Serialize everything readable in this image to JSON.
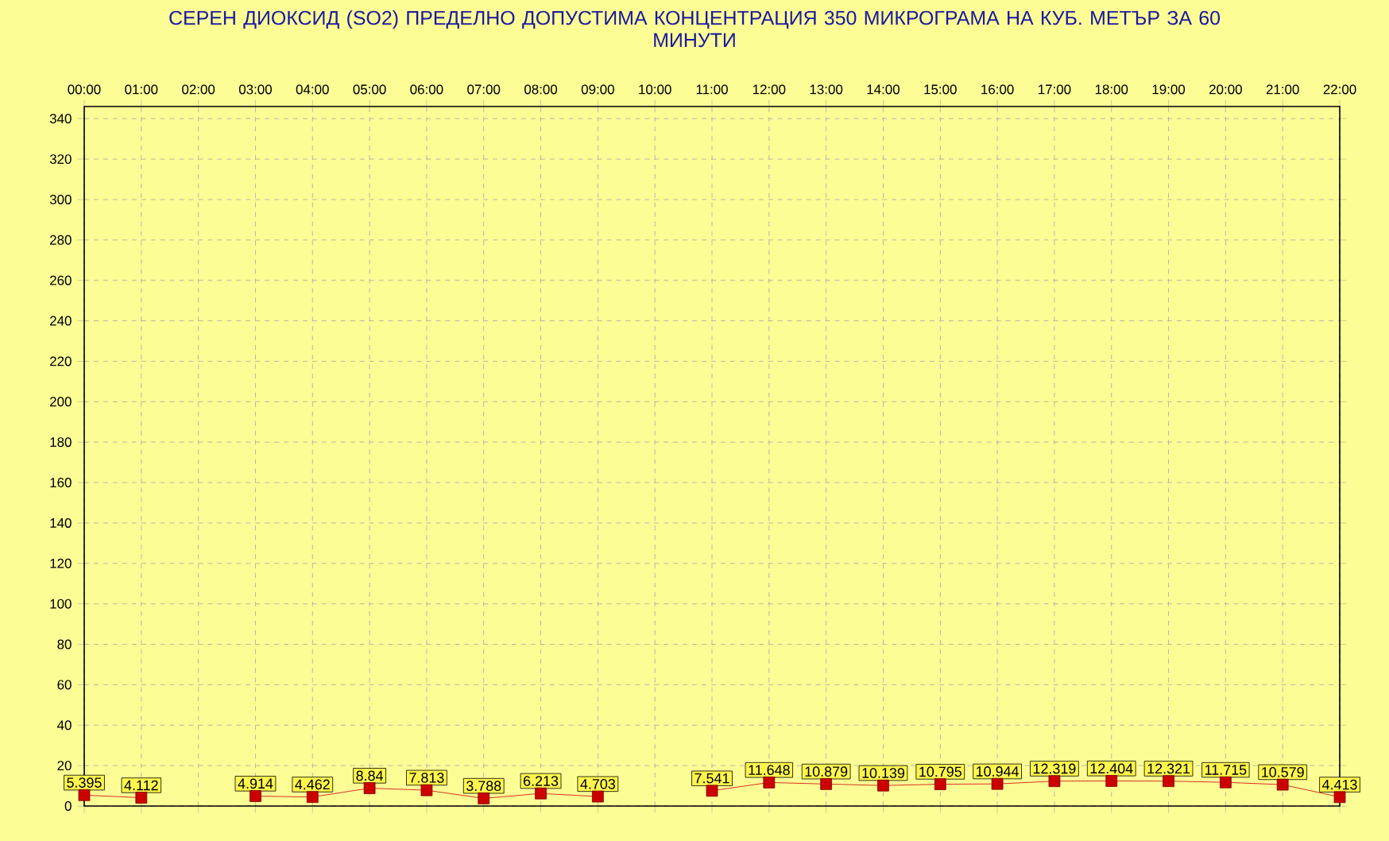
{
  "chart_data": {
    "type": "line",
    "title": "СЕРЕН ДИОКСИД (SO2) ПРЕДЕЛНО ДОПУСТИМА КОНЦЕНТРАЦИЯ 350 МИКРОГРАМА НА КУБ. МЕТЪР ЗА 60 МИНУТИ",
    "categories": [
      "00:00",
      "01:00",
      "02:00",
      "03:00",
      "04:00",
      "05:00",
      "06:00",
      "07:00",
      "08:00",
      "09:00",
      "10:00",
      "11:00",
      "12:00",
      "13:00",
      "14:00",
      "15:00",
      "16:00",
      "17:00",
      "18:00",
      "19:00",
      "20:00",
      "21:00",
      "22:00"
    ],
    "values": [
      5.395,
      4.112,
      null,
      4.914,
      4.462,
      8.84,
      7.813,
      3.788,
      6.213,
      4.703,
      null,
      7.541,
      11.648,
      10.879,
      10.139,
      10.795,
      10.944,
      12.319,
      12.404,
      12.321,
      11.715,
      10.579,
      4.413
    ],
    "color": "#cc0000",
    "marker": "square",
    "data_labels": true,
    "grid": true,
    "ylim": [
      0,
      346
    ],
    "yticks": [
      0,
      20,
      40,
      60,
      80,
      100,
      120,
      140,
      160,
      180,
      200,
      220,
      240,
      260,
      280,
      300,
      320,
      340
    ]
  }
}
